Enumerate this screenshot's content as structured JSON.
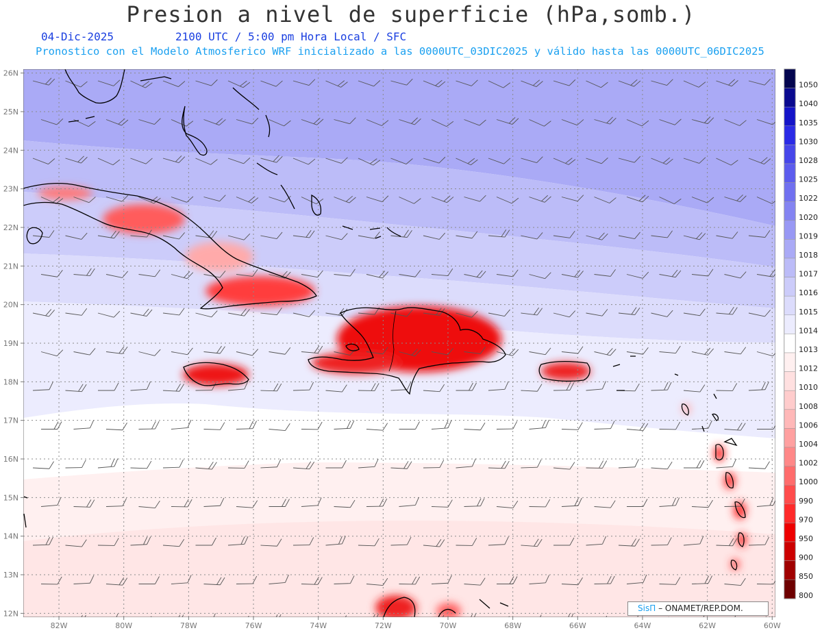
{
  "header": {
    "title": "Presion a nivel de superficie (hPa,somb.)",
    "date": "04-Dic-2025",
    "time": "2100 UTC / 5:00 pm Hora Local / SFC",
    "model_line": "Pronostico con el Modelo Atmosferico WRF inicializado a las 0000UTC_03DIC2025 y válido hasta las  0000UTC_06DIC2025"
  },
  "map": {
    "lon_range": [
      -83.1,
      -59.9
    ],
    "lat_range": [
      11.9,
      26.1
    ],
    "lat_labels": [
      "26N",
      "25N",
      "24N",
      "23N",
      "22N",
      "21N",
      "20N",
      "19N",
      "18N",
      "17N",
      "16N",
      "15N",
      "14N",
      "13N",
      "12N"
    ],
    "lon_labels": [
      "82W",
      "80W",
      "78W",
      "76W",
      "74W",
      "72W",
      "70W",
      "68W",
      "66W",
      "64W",
      "62W",
      "60W"
    ],
    "gridlines": "dotted",
    "wind_barbs": true
  },
  "colorbar": {
    "levels": [
      "1050",
      "1040",
      "1035",
      "1030",
      "1028",
      "1025",
      "1022",
      "1020",
      "1019",
      "1018",
      "1017",
      "1016",
      "1015",
      "1014",
      "1013",
      "1012",
      "1010",
      "1008",
      "1006",
      "1004",
      "1002",
      "1000",
      "990",
      "970",
      "950",
      "900",
      "850",
      "800"
    ],
    "colors": [
      "#04064f",
      "#0a0a8f",
      "#1414c8",
      "#2a2ae6",
      "#4646ea",
      "#5c5cee",
      "#7070f0",
      "#8484f2",
      "#9898f4",
      "#aaaaf6",
      "#bcbcf8",
      "#ccccfa",
      "#dcdcfc",
      "#ececfe",
      "#ffffff",
      "#fff0f0",
      "#ffe0e0",
      "#ffcccc",
      "#ffb8b8",
      "#ffa0a0",
      "#ff8888",
      "#ff6c6c",
      "#ff4c4c",
      "#ff2a2a",
      "#ee0000",
      "#cc0000",
      "#a00000",
      "#6e0000"
    ]
  },
  "credit": {
    "brand": "SisΠ",
    "org": "– ONAMET/REP.DOM."
  }
}
